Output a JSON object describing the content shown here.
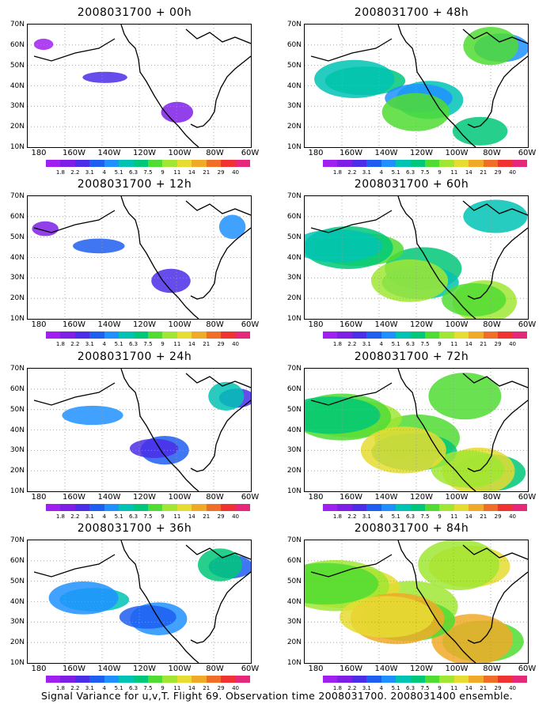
{
  "panels": [
    {
      "title": "2008031700 + 00h",
      "level": 0.05
    },
    {
      "title": "2008031700 + 12h",
      "level": 0.15
    },
    {
      "title": "2008031700 + 24h",
      "level": 0.28
    },
    {
      "title": "2008031700 + 36h",
      "level": 0.4
    },
    {
      "title": "2008031700 + 48h",
      "level": 0.55
    },
    {
      "title": "2008031700 + 60h",
      "level": 0.68
    },
    {
      "title": "2008031700 + 72h",
      "level": 0.8
    },
    {
      "title": "2008031700 + 84h",
      "level": 0.92
    }
  ],
  "y_ticks": [
    "70N",
    "60N",
    "50N",
    "40N",
    "30N",
    "20N",
    "10N"
  ],
  "x_ticks": [
    "180",
    "160W",
    "140W",
    "120W",
    "100W",
    "80W",
    "60W"
  ],
  "colorbar": {
    "labels": [
      "1.8",
      "2.2",
      "3.1",
      "4",
      "5.1",
      "6.3",
      "7.5",
      "9",
      "11",
      "14",
      "21",
      "29",
      "40"
    ],
    "colors": [
      "#a020f0",
      "#7f1fe6",
      "#4b2ee8",
      "#1e5ef0",
      "#1e90ff",
      "#00c3b4",
      "#00c878",
      "#50dc32",
      "#a0e632",
      "#e6dc32",
      "#f0aa28",
      "#f06e28",
      "#f03232",
      "#e6287a"
    ]
  },
  "footer": "Signal Variance for u,v,T. Flight 69. Observation time 2008031700. 2008031400 ensemble."
}
